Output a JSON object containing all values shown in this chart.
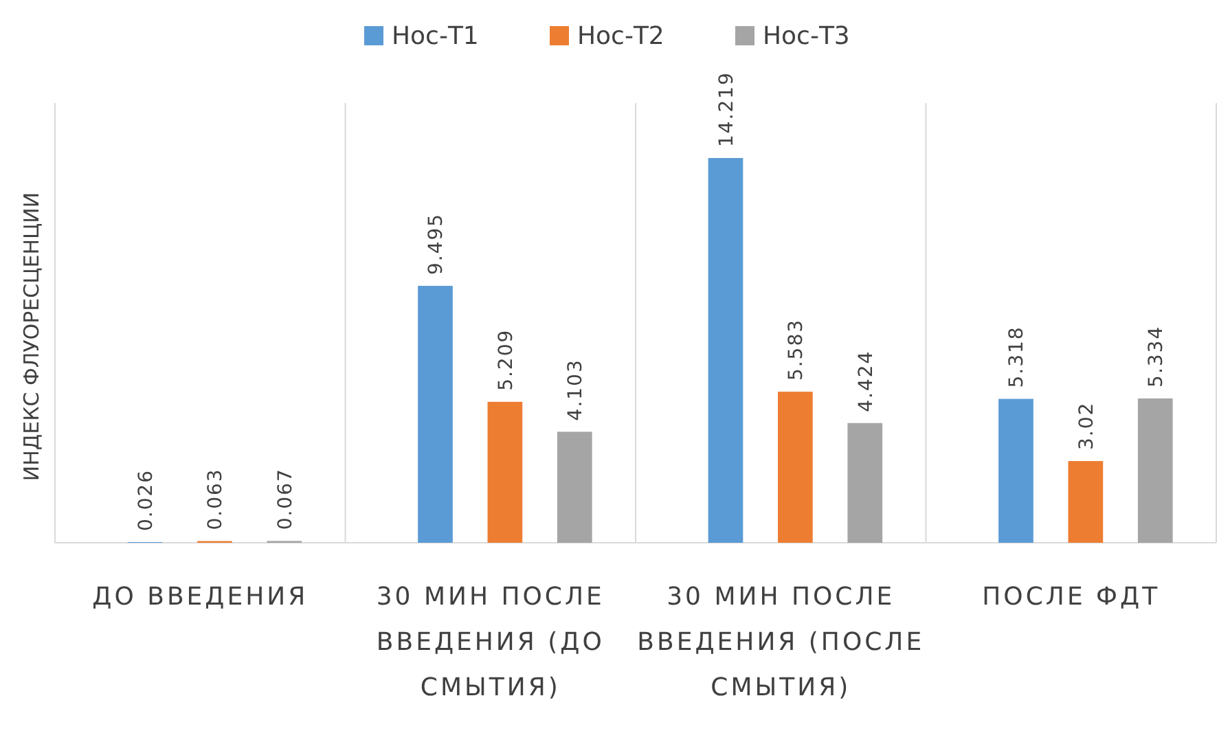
{
  "chart_data": {
    "type": "bar",
    "ylabel": "ИНДЕКС ФЛУОРЕСЦЕНЦИИ",
    "categories": [
      "ДО ВВЕДЕНИЯ",
      "30 МИН ПОСЛЕ ВВЕДЕНИЯ (ДО СМЫТИЯ)",
      "30 МИН ПОСЛЕ ВВЕДЕНИЯ (ПОСЛЕ СМЫТИЯ)",
      "ПОСЛЕ ФДТ"
    ],
    "series": [
      {
        "name": "Нос-Т1",
        "color": "#5b9bd5",
        "values": [
          0.026,
          9.495,
          14.219,
          5.318
        ]
      },
      {
        "name": "Нос-Т2",
        "color": "#ed7d31",
        "values": [
          0.063,
          5.209,
          5.583,
          3.02
        ]
      },
      {
        "name": "Нос-Т3",
        "color": "#a5a5a5",
        "values": [
          0.067,
          4.103,
          4.424,
          5.334
        ]
      }
    ],
    "data_labels": true,
    "legend": "top"
  }
}
